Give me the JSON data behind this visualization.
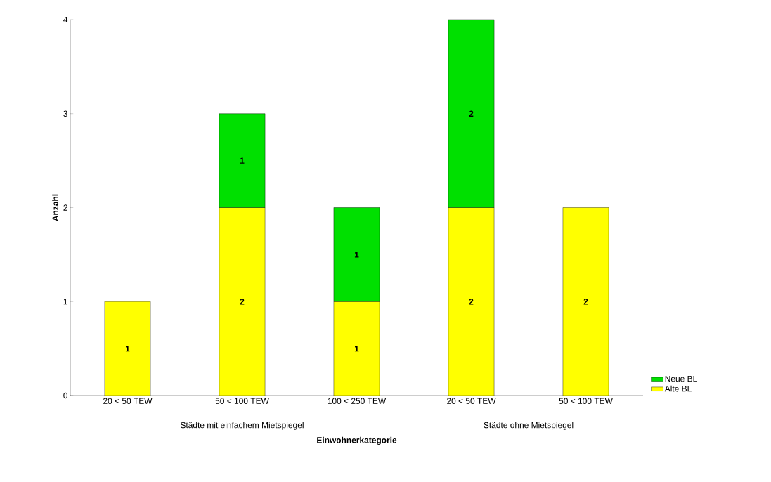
{
  "chart_data": {
    "type": "bar",
    "stacked": true,
    "xlabel": "Einwohnerkategorie",
    "ylabel": "Anzahl",
    "categories": [
      "20 < 50 TEW",
      "50 < 100 TEW",
      "100 < 250 TEW",
      "20 < 50 TEW",
      "50 < 100 TEW"
    ],
    "series": [
      {
        "name": "Alte BL",
        "color": "#ffff00",
        "values": [
          1,
          2,
          1,
          2,
          2
        ]
      },
      {
        "name": "Neue BL",
        "color": "#00e000",
        "values": [
          null,
          1,
          1,
          2,
          null
        ]
      }
    ],
    "ylim": [
      0,
      4
    ],
    "yticks": [
      0,
      1,
      2,
      3,
      4
    ],
    "grid": false,
    "legend": "bottom right",
    "data_labels": true,
    "annotations": [
      "Städte mit einfachem Mietspiegel",
      "Städte ohne Mietspiegel"
    ]
  }
}
